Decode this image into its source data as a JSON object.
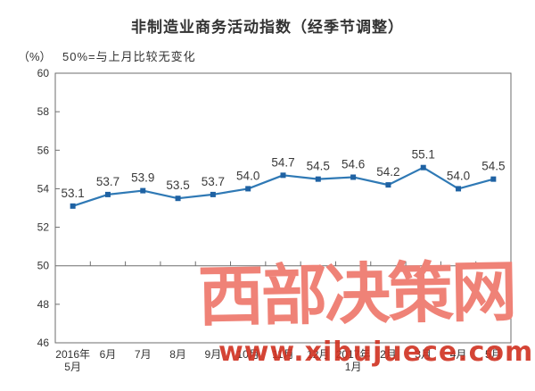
{
  "chart_data": {
    "type": "line",
    "title": "非制造业商务活动指数（经季节调整）",
    "subtitle": "50%=与上月比较无变化",
    "y_unit": "（%）",
    "series_name": "非制造业商务活动指数",
    "categories": [
      "2016年\n5月",
      "6月",
      "7月",
      "8月",
      "9月",
      "10月",
      "11月",
      "12月",
      "2017年\n1月",
      "2月",
      "3月",
      "4月",
      "5月"
    ],
    "values": [
      53.1,
      53.7,
      53.9,
      53.5,
      53.7,
      54.0,
      54.7,
      54.5,
      54.6,
      54.2,
      55.1,
      54.0,
      54.5
    ],
    "ylim": [
      46,
      60
    ],
    "ytick_step": 2,
    "reference_line": 50,
    "grid": false,
    "legend": "none",
    "colors": {
      "line": "#2f79b5",
      "marker": "#1f62a3",
      "axis": "#6e6e6e",
      "value_label": "#3a3a3a",
      "tick_label": "#333333"
    }
  },
  "watermark": {
    "text": "西部决策网",
    "url": "www.xibujuece.com",
    "text_color": "#ef8277",
    "url_color": "#d03020"
  }
}
